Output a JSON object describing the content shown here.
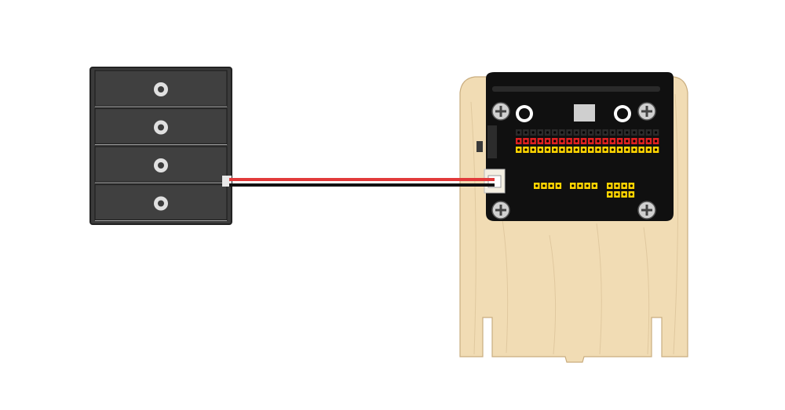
{
  "scene": {
    "battery_holder": {
      "cells": 4,
      "icon": "battery-holder-icon"
    },
    "wires": [
      {
        "name": "positive",
        "color": "#e23a3a"
      },
      {
        "name": "negative",
        "color": "#111111"
      }
    ],
    "board": {
      "icon": "expansion-board-icon",
      "header_rows": [
        {
          "name": "ground",
          "color": "#2b2b2b"
        },
        {
          "name": "power",
          "color": "#e02020"
        },
        {
          "name": "signal",
          "color": "#ffd400"
        }
      ],
      "pins_per_row": 20,
      "extra_header_groups": [
        4,
        4,
        4,
        4
      ]
    },
    "stand": {
      "icon": "wood-stand-icon",
      "color": "#f1dcb4"
    }
  },
  "colors": {
    "holder_body": "#3b3b3b",
    "holder_edge": "#222222",
    "board_body": "#101010",
    "wood": "#f1dcb4",
    "wood_grain": "#dcc49a"
  }
}
